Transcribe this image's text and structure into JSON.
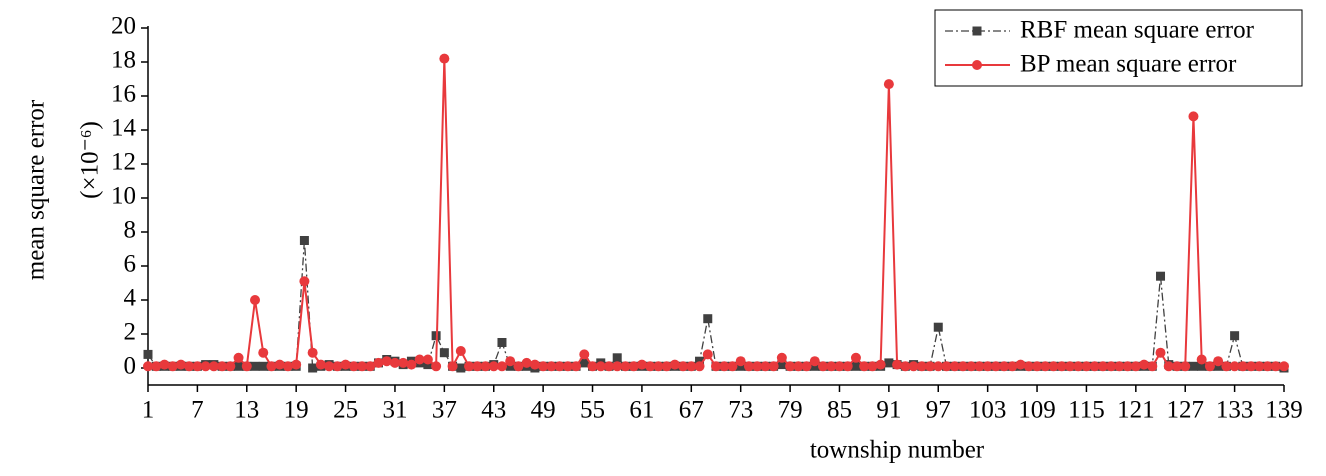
{
  "chart_data": {
    "type": "line",
    "xlabel": "township number",
    "ylabel": "mean square error",
    "ylabel_unit": "(×10⁻⁶)",
    "x": [
      1,
      2,
      3,
      4,
      5,
      6,
      7,
      8,
      9,
      10,
      11,
      12,
      13,
      14,
      15,
      16,
      17,
      18,
      19,
      20,
      21,
      22,
      23,
      24,
      25,
      26,
      27,
      28,
      29,
      30,
      31,
      32,
      33,
      34,
      35,
      36,
      37,
      38,
      39,
      40,
      41,
      42,
      43,
      44,
      45,
      46,
      47,
      48,
      49,
      50,
      51,
      52,
      53,
      54,
      55,
      56,
      57,
      58,
      59,
      60,
      61,
      62,
      63,
      64,
      65,
      66,
      67,
      68,
      69,
      70,
      71,
      72,
      73,
      74,
      75,
      76,
      77,
      78,
      79,
      80,
      81,
      82,
      83,
      84,
      85,
      86,
      87,
      88,
      89,
      90,
      91,
      92,
      93,
      94,
      95,
      96,
      97,
      98,
      99,
      100,
      101,
      102,
      103,
      104,
      105,
      106,
      107,
      108,
      109,
      110,
      111,
      112,
      113,
      114,
      115,
      116,
      117,
      118,
      119,
      120,
      121,
      122,
      123,
      124,
      125,
      126,
      127,
      128,
      129,
      130,
      131,
      132,
      133,
      134,
      135,
      136,
      137,
      138,
      139
    ],
    "series": [
      {
        "name": "RBF mean square error",
        "color": "#404040",
        "line_style": "dashdot",
        "marker": "square",
        "values": [
          0.8,
          0.1,
          0.1,
          0.1,
          0.1,
          0.1,
          0.1,
          0.2,
          0.2,
          0.1,
          0.1,
          0.1,
          0.1,
          0.1,
          0.1,
          0.1,
          0.1,
          0.1,
          0.1,
          7.5,
          0.0,
          0.1,
          0.2,
          0.1,
          0.1,
          0.1,
          0.1,
          0.1,
          0.3,
          0.5,
          0.4,
          0.2,
          0.4,
          0.3,
          0.2,
          1.9,
          0.9,
          0.1,
          0.0,
          0.1,
          0.1,
          0.1,
          0.2,
          1.5,
          0.1,
          0.1,
          0.1,
          0.0,
          0.1,
          0.1,
          0.1,
          0.1,
          0.1,
          0.3,
          0.1,
          0.3,
          0.1,
          0.6,
          0.1,
          0.1,
          0.1,
          0.1,
          0.1,
          0.1,
          0.1,
          0.1,
          0.1,
          0.4,
          2.9,
          0.1,
          0.1,
          0.1,
          0.1,
          0.1,
          0.1,
          0.1,
          0.1,
          0.2,
          0.1,
          0.1,
          0.1,
          0.1,
          0.1,
          0.1,
          0.1,
          0.1,
          0.1,
          0.1,
          0.1,
          0.1,
          0.3,
          0.2,
          0.1,
          0.2,
          0.1,
          0.1,
          2.4,
          0.1,
          0.1,
          0.1,
          0.1,
          0.1,
          0.1,
          0.1,
          0.1,
          0.1,
          0.1,
          0.1,
          0.1,
          0.1,
          0.1,
          0.1,
          0.1,
          0.1,
          0.1,
          0.1,
          0.1,
          0.1,
          0.1,
          0.1,
          0.1,
          0.1,
          0.1,
          5.4,
          0.2,
          0.1,
          0.1,
          0.1,
          0.1,
          0.1,
          0.1,
          0.1,
          1.9,
          0.1,
          0.1,
          0.1,
          0.1,
          0.1,
          0.0
        ]
      },
      {
        "name": "BP mean square error",
        "color": "#e8393c",
        "line_style": "solid",
        "marker": "circle",
        "values": [
          0.1,
          0.1,
          0.2,
          0.1,
          0.2,
          0.1,
          0.1,
          0.1,
          0.1,
          0.1,
          0.1,
          0.6,
          0.1,
          4.0,
          0.9,
          0.1,
          0.2,
          0.1,
          0.2,
          5.1,
          0.9,
          0.2,
          0.1,
          0.1,
          0.2,
          0.1,
          0.1,
          0.1,
          0.3,
          0.4,
          0.3,
          0.3,
          0.2,
          0.5,
          0.5,
          0.1,
          18.2,
          0.1,
          1.0,
          0.1,
          0.1,
          0.1,
          0.1,
          0.1,
          0.4,
          0.1,
          0.3,
          0.2,
          0.1,
          0.1,
          0.1,
          0.1,
          0.1,
          0.8,
          0.1,
          0.1,
          0.1,
          0.1,
          0.1,
          0.1,
          0.2,
          0.1,
          0.1,
          0.1,
          0.2,
          0.1,
          0.1,
          0.1,
          0.8,
          0.1,
          0.1,
          0.1,
          0.4,
          0.1,
          0.1,
          0.1,
          0.1,
          0.6,
          0.1,
          0.1,
          0.1,
          0.4,
          0.1,
          0.1,
          0.1,
          0.1,
          0.6,
          0.1,
          0.1,
          0.2,
          16.7,
          0.2,
          0.1,
          0.1,
          0.1,
          0.1,
          0.1,
          0.1,
          0.1,
          0.1,
          0.1,
          0.1,
          0.1,
          0.1,
          0.1,
          0.1,
          0.2,
          0.1,
          0.1,
          0.1,
          0.1,
          0.1,
          0.1,
          0.1,
          0.1,
          0.1,
          0.1,
          0.1,
          0.1,
          0.1,
          0.1,
          0.2,
          0.1,
          0.9,
          0.1,
          0.1,
          0.1,
          14.8,
          0.5,
          0.1,
          0.4,
          0.1,
          0.1,
          0.1,
          0.1,
          0.1,
          0.1,
          0.1,
          0.1
        ]
      }
    ],
    "xlim": [
      1,
      139
    ],
    "xticks": [
      1,
      7,
      13,
      19,
      25,
      31,
      37,
      43,
      49,
      55,
      61,
      67,
      73,
      79,
      85,
      91,
      97,
      103,
      109,
      115,
      121,
      127,
      133,
      139
    ],
    "ylim": [
      -1,
      20
    ],
    "yticks": [
      0,
      2,
      4,
      6,
      8,
      10,
      12,
      14,
      16,
      18,
      20
    ],
    "legend": "upper right"
  }
}
